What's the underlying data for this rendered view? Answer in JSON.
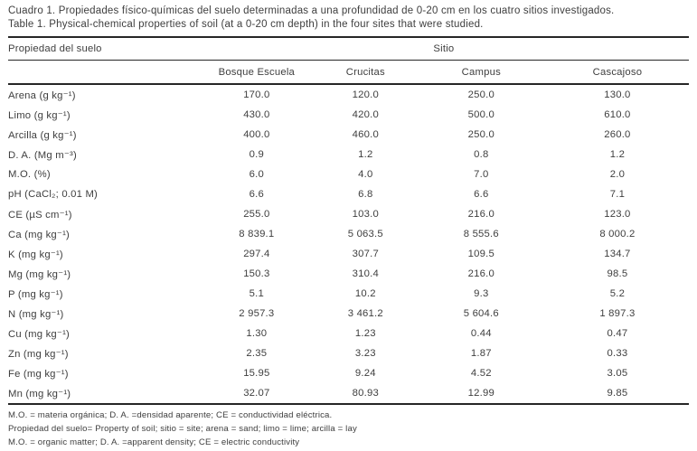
{
  "caption": {
    "spanish": "Cuadro 1. Propiedades físico-químicas del suelo determinadas a una profundidad de 0-20 cm en los cuatro sitios investigados.",
    "english": "Table 1. Physical-chemical properties of soil (at a 0-20 cm depth) in the four sites that were studied."
  },
  "table": {
    "property_header": "Propiedad del suelo",
    "site_group_header": "Sitio",
    "site_columns": [
      "Bosque Escuela",
      "Crucitas",
      "Campus",
      "Cascajoso"
    ],
    "rows": [
      {
        "property": "Arena (g kg⁻¹)",
        "values": [
          "170.0",
          "120.0",
          "250.0",
          "130.0"
        ]
      },
      {
        "property": "Limo (g kg⁻¹)",
        "values": [
          "430.0",
          "420.0",
          "500.0",
          "610.0"
        ]
      },
      {
        "property": "Arcilla (g kg⁻¹)",
        "values": [
          "400.0",
          "460.0",
          "250.0",
          "260.0"
        ]
      },
      {
        "property": "D. A. (Mg m⁻³)",
        "values": [
          "0.9",
          "1.2",
          "0.8",
          "1.2"
        ]
      },
      {
        "property": "M.O. (%)",
        "values": [
          "6.0",
          "4.0",
          "7.0",
          "2.0"
        ]
      },
      {
        "property": "pH (CaCl₂; 0.01 M)",
        "values": [
          "6.6",
          "6.8",
          "6.6",
          "7.1"
        ]
      },
      {
        "property": "CE (µS cm⁻¹)",
        "values": [
          "255.0",
          "103.0",
          "216.0",
          "123.0"
        ]
      },
      {
        "property": "Ca (mg kg⁻¹)",
        "values": [
          "8 839.1",
          "5 063.5",
          "8 555.6",
          "8 000.2"
        ]
      },
      {
        "property": "K (mg kg⁻¹)",
        "values": [
          "297.4",
          "307.7",
          "109.5",
          "134.7"
        ]
      },
      {
        "property": "Mg (mg kg⁻¹)",
        "values": [
          "150.3",
          "310.4",
          "216.0",
          "98.5"
        ]
      },
      {
        "property": "P (mg kg⁻¹)",
        "values": [
          "5.1",
          "10.2",
          "9.3",
          "5.2"
        ]
      },
      {
        "property": "N (mg kg⁻¹)",
        "values": [
          "2 957.3",
          "3 461.2",
          "5 604.6",
          "1 897.3"
        ]
      },
      {
        "property": "Cu (mg kg⁻¹)",
        "values": [
          "1.30",
          "1.23",
          "0.44",
          "0.47"
        ]
      },
      {
        "property": "Zn (mg kg⁻¹)",
        "values": [
          "2.35",
          "3.23",
          "1.87",
          "0.33"
        ]
      },
      {
        "property": "Fe (mg kg⁻¹)",
        "values": [
          "15.95",
          "9.24",
          "4.52",
          "3.05"
        ]
      },
      {
        "property": "Mn (mg kg⁻¹)",
        "values": [
          "32.07",
          "80.93",
          "12.99",
          "9.85"
        ]
      }
    ]
  },
  "footnotes": [
    "M.O. = materia orgánica; D. A. =densidad aparente; CE = conductividad eléctrica.",
    "Propiedad del suelo= Property of soil; sitio = site; arena = sand; limo = lime; arcilla = lay",
    "M.O. = organic matter; D. A. =apparent density; CE = electric conductivity"
  ],
  "colors": {
    "text": "#3e3e3e",
    "rule": "#262626",
    "background": "#ffffff"
  }
}
